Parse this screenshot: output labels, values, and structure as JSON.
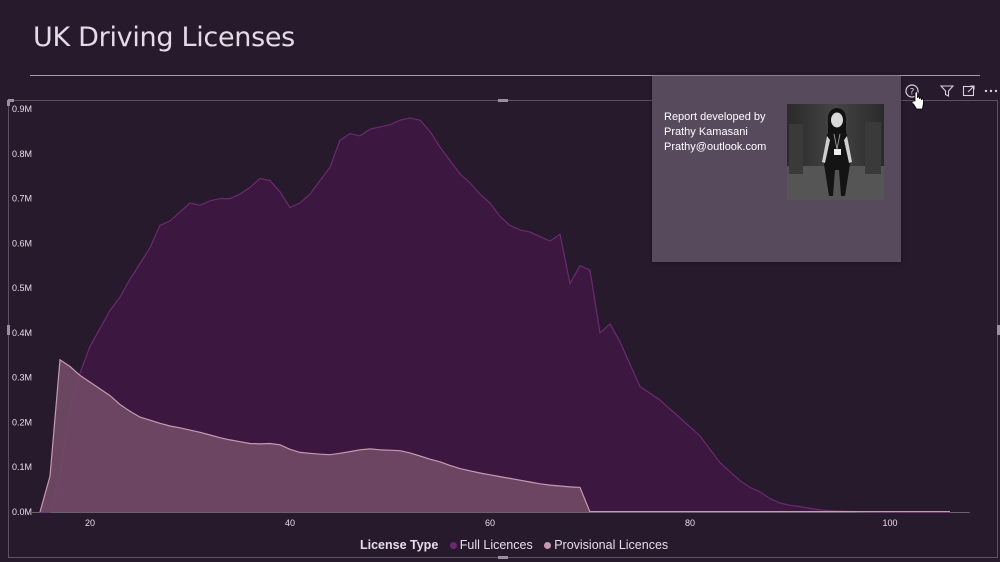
{
  "page": {
    "title": "UK Driving Licenses"
  },
  "tooltip": {
    "line1": "Report developed by",
    "line2": "Prathy Kamasani",
    "line3": "Prathy@outlook.com"
  },
  "toolbar": {
    "icons": [
      "help-icon",
      "filter-icon",
      "focus-mode-icon",
      "more-options-icon"
    ]
  },
  "colors": {
    "background": "#261a2c",
    "full": "#3c1740",
    "full_line": "#6b2a70",
    "provisional": "#714a65",
    "provisional_line": "#c79ab1"
  },
  "chart_data": {
    "type": "area",
    "title": "",
    "xlabel": "",
    "ylabel": "",
    "xlim": [
      15,
      108
    ],
    "ylim": [
      0,
      900000
    ],
    "x_ticks": [
      20,
      40,
      60,
      80,
      100
    ],
    "x_tick_labels": [
      "20",
      "40",
      "60",
      "80",
      "100"
    ],
    "y_ticks": [
      0,
      100000,
      200000,
      300000,
      400000,
      500000,
      600000,
      700000,
      800000,
      900000
    ],
    "y_tick_labels": [
      "0.0M",
      "0.1M",
      "0.2M",
      "0.3M",
      "0.4M",
      "0.5M",
      "0.6M",
      "0.7M",
      "0.8M",
      "0.9M"
    ],
    "grid": false,
    "legend": {
      "title": "License Type",
      "position": "bottom"
    },
    "series": [
      {
        "name": "Full Licences",
        "color": "#3c1740",
        "x": [
          15,
          16,
          17,
          18,
          19,
          20,
          21,
          22,
          23,
          24,
          25,
          26,
          27,
          28,
          29,
          30,
          31,
          32,
          33,
          34,
          35,
          36,
          37,
          38,
          39,
          40,
          41,
          42,
          43,
          44,
          45,
          46,
          47,
          48,
          49,
          50,
          51,
          52,
          53,
          54,
          55,
          56,
          57,
          58,
          59,
          60,
          61,
          62,
          63,
          64,
          65,
          66,
          67,
          68,
          69,
          70,
          71,
          72,
          73,
          74,
          75,
          76,
          77,
          78,
          79,
          80,
          81,
          82,
          83,
          84,
          85,
          86,
          87,
          88,
          89,
          90,
          91,
          92,
          93,
          94,
          95,
          96,
          97,
          98,
          99,
          100,
          101,
          102,
          103,
          104,
          105,
          106
        ],
        "values": [
          0,
          0,
          80000,
          230000,
          310000,
          370000,
          410000,
          450000,
          480000,
          520000,
          555000,
          590000,
          640000,
          650000,
          670000,
          690000,
          685000,
          695000,
          700000,
          700000,
          710000,
          725000,
          745000,
          740000,
          715000,
          680000,
          690000,
          710000,
          740000,
          770000,
          830000,
          845000,
          840000,
          855000,
          860000,
          865000,
          875000,
          880000,
          875000,
          850000,
          815000,
          785000,
          755000,
          735000,
          710000,
          690000,
          660000,
          640000,
          630000,
          625000,
          615000,
          605000,
          620000,
          510000,
          550000,
          540000,
          400000,
          420000,
          380000,
          330000,
          280000,
          265000,
          250000,
          230000,
          210000,
          190000,
          170000,
          140000,
          110000,
          90000,
          70000,
          55000,
          45000,
          30000,
          20000,
          15000,
          12000,
          8000,
          5000,
          3000,
          2000,
          1500,
          1000,
          500,
          300,
          200,
          100,
          50,
          30,
          20,
          10,
          0
        ]
      },
      {
        "name": "Provisional Licences",
        "color": "#714a65",
        "x": [
          15,
          16,
          17,
          18,
          19,
          20,
          21,
          22,
          23,
          24,
          25,
          26,
          27,
          28,
          29,
          30,
          31,
          32,
          33,
          34,
          35,
          36,
          37,
          38,
          39,
          40,
          41,
          42,
          43,
          44,
          45,
          46,
          47,
          48,
          49,
          50,
          51,
          52,
          53,
          54,
          55,
          56,
          57,
          58,
          59,
          60,
          61,
          62,
          63,
          64,
          65,
          66,
          67,
          68,
          69,
          70,
          71,
          72,
          73,
          74,
          75,
          76,
          77,
          78,
          79,
          80,
          81,
          82,
          83,
          84,
          85,
          86,
          87,
          88,
          89,
          90,
          91,
          92,
          93,
          94,
          95,
          96,
          97,
          98,
          99,
          100,
          101,
          102,
          103,
          104,
          105,
          106
        ],
        "values": [
          0,
          80000,
          340000,
          325000,
          305000,
          290000,
          275000,
          260000,
          240000,
          225000,
          212000,
          205000,
          198000,
          192000,
          188000,
          183000,
          178000,
          172000,
          166000,
          161000,
          157000,
          153000,
          152000,
          153000,
          150000,
          140000,
          133000,
          131000,
          129000,
          128000,
          131000,
          135000,
          139000,
          141000,
          139000,
          138000,
          137000,
          132000,
          125000,
          118000,
          112000,
          104000,
          97000,
          92000,
          87000,
          83000,
          79000,
          75000,
          71000,
          67000,
          63000,
          60000,
          58000,
          56000,
          55000,
          0,
          0,
          0,
          0,
          0,
          0,
          0,
          0,
          0,
          0,
          0,
          0,
          0,
          0,
          0,
          0,
          0,
          0,
          0,
          0,
          0,
          0,
          0,
          0,
          0,
          0,
          0,
          0,
          0,
          0,
          0,
          0,
          0,
          0,
          0,
          0,
          0
        ]
      }
    ]
  }
}
